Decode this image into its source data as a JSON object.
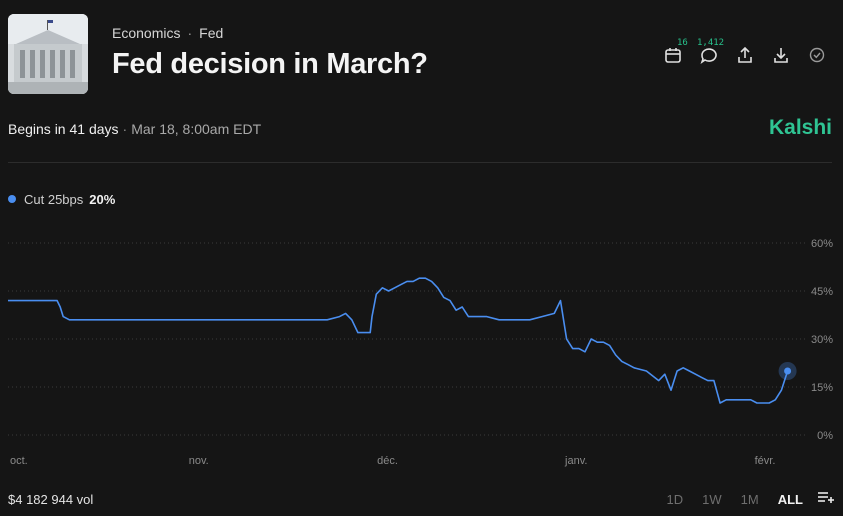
{
  "header": {
    "category": "Economics",
    "subcategory": "Fed",
    "title": "Fed decision in March?"
  },
  "actions": {
    "calendar_count": "16",
    "comments_count": "1,412"
  },
  "event": {
    "begins": "Begins in 41 days",
    "datetime": "Mar 18, 8:00am EDT"
  },
  "brand": "Kalshi",
  "legend": {
    "label": "Cut 25bps",
    "value": "20%",
    "color": "#4a8ef0"
  },
  "footer": {
    "volume": "$4 182 944 vol",
    "ranges": [
      "1D",
      "1W",
      "1M",
      "ALL"
    ],
    "active_range": "ALL"
  },
  "chart_data": {
    "type": "line",
    "title": "",
    "xlabel": "",
    "ylabel": "",
    "x_ticks": [
      "oct.",
      "nov.",
      "déc.",
      "janv.",
      "févr."
    ],
    "y_ticks": [
      "0%",
      "15%",
      "30%",
      "45%",
      "60%"
    ],
    "ylim": [
      0,
      60
    ],
    "xlim": [
      0,
      130
    ],
    "grid": true,
    "series": [
      {
        "name": "Cut 25bps",
        "color": "#4a8ef0",
        "x": [
          0,
          8,
          8.5,
          9,
          10,
          20,
          30,
          40,
          52,
          54,
          55,
          56,
          57,
          57.2,
          58,
          59,
          59.3,
          60,
          61,
          62,
          63,
          64,
          65,
          66,
          67,
          68,
          69,
          70,
          71,
          72,
          73,
          74,
          75,
          77,
          78,
          80,
          85,
          87,
          89,
          90,
          91,
          92,
          93,
          94,
          95,
          96,
          97,
          98,
          99,
          100,
          101,
          102,
          104,
          106,
          107,
          108,
          109,
          110,
          111,
          112,
          113,
          114,
          115,
          116,
          117,
          118,
          119,
          121,
          122,
          124,
          125,
          126,
          127
        ],
        "y": [
          42,
          42,
          40,
          37,
          36,
          36,
          36,
          36,
          36,
          37,
          38,
          36,
          32,
          32,
          32,
          32,
          37,
          44,
          46,
          45,
          46,
          47,
          48,
          48,
          49,
          49,
          48,
          46,
          43,
          42,
          39,
          40,
          37,
          37,
          37,
          36,
          36,
          37,
          38,
          42,
          30,
          27,
          27,
          26,
          30,
          29,
          29,
          28,
          25,
          23,
          22,
          21,
          20,
          17,
          19,
          14,
          20,
          21,
          20,
          19,
          18,
          17,
          17,
          10,
          11,
          11,
          11,
          11,
          10,
          10,
          11,
          14,
          20
        ]
      }
    ]
  }
}
